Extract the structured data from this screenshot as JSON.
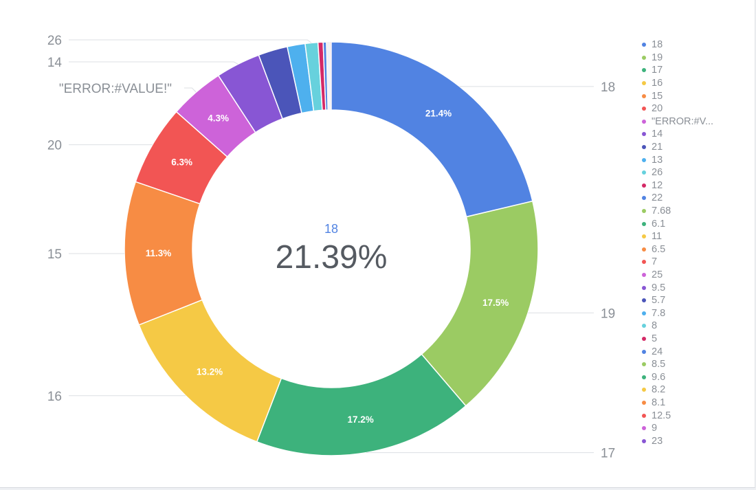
{
  "center": {
    "label": "18",
    "value": "21.39%"
  },
  "colors": [
    "#5183e2",
    "#9bcb63",
    "#3db27c",
    "#f5c945",
    "#f78c44",
    "#f25554",
    "#cd63d9",
    "#8856d4",
    "#4b55b9",
    "#4eb0ee",
    "#67d1dd",
    "#d42966"
  ],
  "chart_data": {
    "type": "pie",
    "donut": true,
    "legend_position": "right",
    "slices": [
      {
        "label": "18",
        "value": 21.39,
        "data_label": "21.4%",
        "callout": true
      },
      {
        "label": "19",
        "value": 17.5,
        "data_label": "17.5%",
        "callout": true
      },
      {
        "label": "17",
        "value": 17.2,
        "data_label": "17.2%",
        "callout": true
      },
      {
        "label": "16",
        "value": 13.2,
        "data_label": "13.2%",
        "callout": true
      },
      {
        "label": "15",
        "value": 11.3,
        "data_label": "11.3%",
        "callout": true
      },
      {
        "label": "20",
        "value": 6.3,
        "data_label": "6.3%",
        "callout": true
      },
      {
        "label": "\"ERROR:#VALUE!\"",
        "legend_label": "\"ERROR:#V...",
        "value": 4.3,
        "data_label": "4.3%",
        "callout": true
      },
      {
        "label": "14",
        "value": 3.5,
        "data_label": "",
        "callout": true
      },
      {
        "label": "21",
        "value": 2.3,
        "data_label": "",
        "callout": false
      },
      {
        "label": "13",
        "value": 1.4,
        "data_label": "",
        "callout": false
      },
      {
        "label": "26",
        "value": 1.0,
        "data_label": "",
        "callout": true
      },
      {
        "label": "12",
        "value": 0.4,
        "data_label": "",
        "callout": false
      },
      {
        "label": "22",
        "value": 0.25,
        "data_label": "",
        "callout": false
      },
      {
        "label": "7.68",
        "value": 0.02,
        "data_label": "",
        "callout": false
      },
      {
        "label": "6.1",
        "value": 0.02,
        "data_label": "",
        "callout": false
      },
      {
        "label": "11",
        "value": 0.02,
        "data_label": "",
        "callout": false
      },
      {
        "label": "6.5",
        "value": 0.02,
        "data_label": "",
        "callout": false
      },
      {
        "label": "7",
        "value": 0.02,
        "data_label": "",
        "callout": false
      },
      {
        "label": "25",
        "value": 0.02,
        "data_label": "",
        "callout": false
      },
      {
        "label": "9.5",
        "value": 0.02,
        "data_label": "",
        "callout": false
      },
      {
        "label": "5.7",
        "value": 0.02,
        "data_label": "",
        "callout": false
      },
      {
        "label": "7.8",
        "value": 0.02,
        "data_label": "",
        "callout": false
      },
      {
        "label": "8",
        "value": 0.02,
        "data_label": "",
        "callout": false
      },
      {
        "label": "5",
        "value": 0.02,
        "data_label": "",
        "callout": false
      },
      {
        "label": "24",
        "value": 0.02,
        "data_label": "",
        "callout": false
      },
      {
        "label": "8.5",
        "value": 0.02,
        "data_label": "",
        "callout": false
      },
      {
        "label": "9.6",
        "value": 0.02,
        "data_label": "",
        "callout": false
      },
      {
        "label": "8.2",
        "value": 0.02,
        "data_label": "",
        "callout": false
      },
      {
        "label": "8.1",
        "value": 0.02,
        "data_label": "",
        "callout": false
      },
      {
        "label": "12.5",
        "value": 0.02,
        "data_label": "",
        "callout": false
      },
      {
        "label": "9",
        "value": 0.02,
        "data_label": "",
        "callout": false
      },
      {
        "label": "23",
        "value": 0.02,
        "data_label": "",
        "callout": false
      }
    ]
  }
}
